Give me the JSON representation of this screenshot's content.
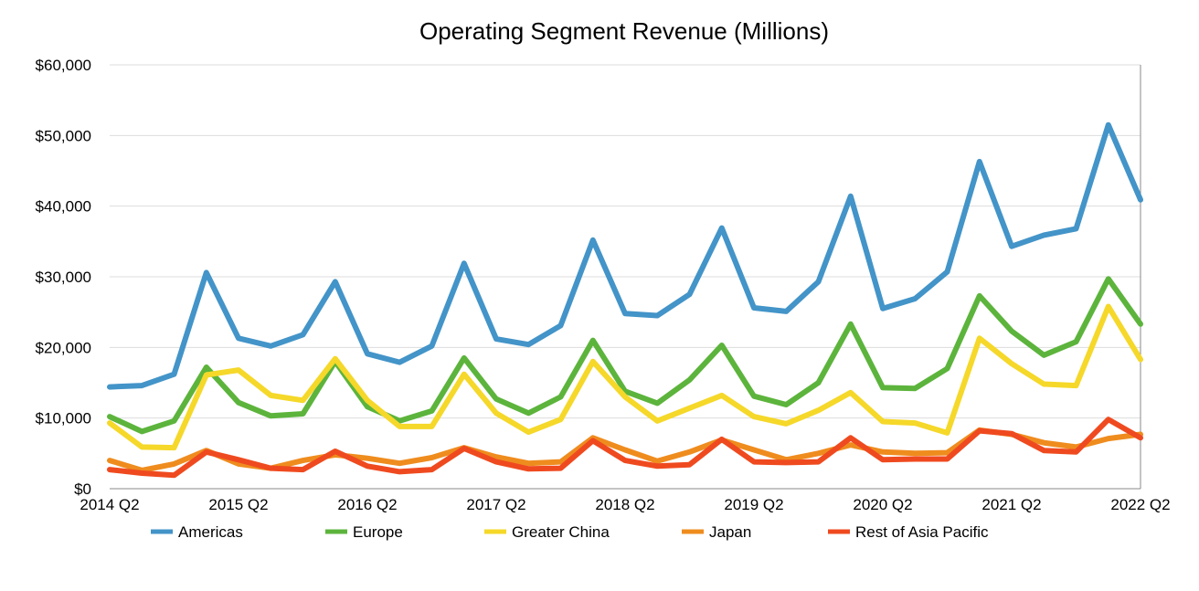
{
  "chart_data": {
    "type": "line",
    "title": "Operating Segment Revenue (Millions)",
    "xlabel": "",
    "ylabel": "",
    "ylim": [
      0,
      60000
    ],
    "y_ticks": [
      0,
      10000,
      20000,
      30000,
      40000,
      50000,
      60000
    ],
    "y_tick_labels": [
      "$0",
      "$10,000",
      "$20,000",
      "$30,000",
      "$40,000",
      "$50,000",
      "$60,000"
    ],
    "x_tick_labels": [
      "2014 Q2",
      "2015 Q2",
      "2016 Q2",
      "2017 Q2",
      "2018 Q2",
      "2019 Q2",
      "2020 Q2",
      "2021 Q2",
      "2022 Q2"
    ],
    "x_tick_index": [
      0,
      4,
      8,
      12,
      16,
      20,
      24,
      28,
      32
    ],
    "grid": true,
    "legend_position": "bottom",
    "categories": [
      "2014 Q2",
      "2014 Q3",
      "2014 Q4",
      "2015 Q1",
      "2015 Q2",
      "2015 Q3",
      "2015 Q4",
      "2016 Q1",
      "2016 Q2",
      "2016 Q3",
      "2016 Q4",
      "2017 Q1",
      "2017 Q2",
      "2017 Q3",
      "2017 Q4",
      "2018 Q1",
      "2018 Q2",
      "2018 Q3",
      "2018 Q4",
      "2019 Q1",
      "2019 Q2",
      "2019 Q3",
      "2019 Q4",
      "2020 Q1",
      "2020 Q2",
      "2020 Q3",
      "2020 Q4",
      "2021 Q1",
      "2021 Q2",
      "2021 Q3",
      "2021 Q4",
      "2022 Q1",
      "2022 Q2"
    ],
    "series": [
      {
        "name": "Americas",
        "color": "#4394c8",
        "values": [
          14400,
          14600,
          16200,
          30600,
          21300,
          20200,
          21800,
          29300,
          19100,
          17900,
          20200,
          31900,
          21200,
          20400,
          23100,
          35200,
          24800,
          24500,
          27500,
          36900,
          25600,
          25100,
          29300,
          41400,
          25500,
          26900,
          30700,
          46300,
          34300,
          35900,
          36800,
          51500,
          40900
        ]
      },
      {
        "name": "Europe",
        "color": "#5cb43c",
        "values": [
          10200,
          8100,
          9600,
          17200,
          12200,
          10300,
          10600,
          18000,
          11600,
          9600,
          11000,
          18500,
          12700,
          10700,
          13000,
          21000,
          13800,
          12100,
          15400,
          20300,
          13100,
          11900,
          15000,
          23300,
          14300,
          14200,
          17000,
          27300,
          22300,
          18900,
          20800,
          29700,
          23300
        ]
      },
      {
        "name": "Greater China",
        "color": "#f5d829",
        "values": [
          9300,
          5900,
          5800,
          16100,
          16800,
          13200,
          12500,
          18400,
          12500,
          8800,
          8800,
          16200,
          10700,
          8000,
          9800,
          18000,
          13000,
          9600,
          11400,
          13200,
          10200,
          9200,
          11100,
          13600,
          9500,
          9300,
          7900,
          21300,
          17700,
          14800,
          14600,
          25800,
          18300
        ]
      },
      {
        "name": "Japan",
        "color": "#ef8c1e",
        "values": [
          4000,
          2600,
          3500,
          5400,
          3500,
          2900,
          4000,
          4800,
          4300,
          3600,
          4400,
          5800,
          4500,
          3600,
          3800,
          7200,
          5500,
          3900,
          5200,
          6900,
          5500,
          4100,
          5000,
          6200,
          5200,
          5000,
          5100,
          8300,
          7700,
          6500,
          5900,
          7100,
          7700
        ]
      },
      {
        "name": "Rest of Asia Pacific",
        "color": "#ef4a1f",
        "values": [
          2700,
          2200,
          1900,
          5200,
          4100,
          2900,
          2700,
          5300,
          3200,
          2400,
          2700,
          5700,
          3800,
          2800,
          2900,
          6800,
          4000,
          3200,
          3400,
          7000,
          3800,
          3700,
          3800,
          7200,
          4100,
          4200,
          4200,
          8200,
          7800,
          5400,
          5200,
          9800,
          7200
        ]
      }
    ]
  }
}
